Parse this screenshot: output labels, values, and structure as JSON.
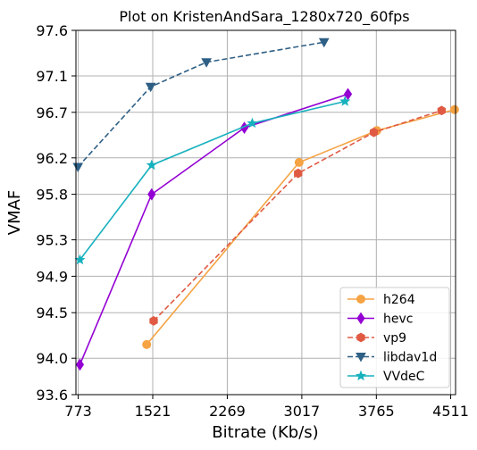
{
  "chart_data": {
    "type": "line",
    "title": "Plot on KristenAndSara_1280x720_60fps",
    "xlabel": "Bitrate (Kb/s)",
    "ylabel": "VMAF",
    "xlim": [
      750,
      4560
    ],
    "ylim": [
      93.6,
      97.6
    ],
    "x_ticks": [
      773,
      1521,
      2269,
      3017,
      3765,
      4511
    ],
    "y_ticks": [
      93.6,
      94.0,
      94.5,
      94.9,
      95.3,
      95.8,
      96.2,
      96.7,
      97.1,
      97.6
    ],
    "grid": true,
    "legend_position": "bottom-right",
    "series": [
      {
        "name": "h264",
        "color": "#f5a343",
        "dash": "solid",
        "marker": "circle",
        "x": [
          1460,
          2990,
          3770,
          4550
        ],
        "y": [
          94.15,
          96.15,
          96.5,
          96.73
        ]
      },
      {
        "name": "hevc",
        "color": "#9400d3",
        "dash": "solid",
        "marker": "diamond",
        "x": [
          790,
          1510,
          2440,
          3480
        ],
        "y": [
          93.93,
          95.8,
          96.53,
          96.9
        ]
      },
      {
        "name": "vp9",
        "color": "#e05a43",
        "dash": "dashed",
        "marker": "hexagon",
        "x": [
          1530,
          2980,
          3740,
          4420
        ],
        "y": [
          94.41,
          96.03,
          96.48,
          96.72
        ]
      },
      {
        "name": "libdav1d",
        "color": "#2e5f85",
        "dash": "dashed",
        "marker": "triangle-down",
        "x": [
          770,
          1500,
          2060,
          3240
        ],
        "y": [
          96.1,
          96.98,
          97.25,
          97.47
        ]
      },
      {
        "name": "VVdeC",
        "color": "#17b1be",
        "dash": "solid",
        "marker": "star",
        "x": [
          790,
          1510,
          2520,
          3450
        ],
        "y": [
          95.08,
          96.12,
          96.58,
          96.82
        ]
      }
    ]
  }
}
